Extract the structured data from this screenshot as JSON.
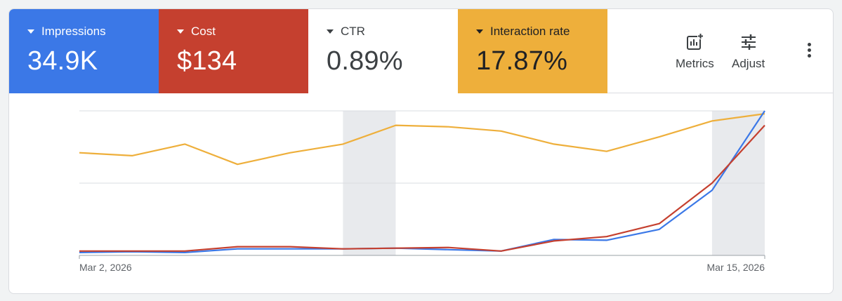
{
  "metrics": [
    {
      "label": "Impressions",
      "value": "34.9K",
      "bg": "#3b78e7"
    },
    {
      "label": "Cost",
      "value": "$134",
      "bg": "#c5402f"
    },
    {
      "label": "CTR",
      "value": "0.89%",
      "bg": "#ffffff"
    },
    {
      "label": "Interaction rate",
      "value": "17.87%",
      "bg": "#eeaf3b"
    }
  ],
  "tools": {
    "metrics_label": "Metrics",
    "adjust_label": "Adjust"
  },
  "chart_data": {
    "type": "line",
    "x_tick_labels": [
      "Mar 2, 2026",
      "Mar 15, 2026"
    ],
    "x": [
      "Mar 2",
      "Mar 3",
      "Mar 4",
      "Mar 5",
      "Mar 6",
      "Mar 7",
      "Mar 8",
      "Mar 9",
      "Mar 10",
      "Mar 11",
      "Mar 12",
      "Mar 13",
      "Mar 14",
      "Mar 15"
    ],
    "ylim": [
      0,
      100
    ],
    "grid": true,
    "highlighted_ranges": [
      [
        "Mar 7",
        "Mar 8"
      ],
      [
        "Mar 14",
        "Mar 15"
      ]
    ],
    "series": [
      {
        "name": "Impressions",
        "color": "#3b78e7",
        "values": [
          2,
          2.5,
          2,
          4.5,
          4.5,
          4.5,
          5,
          4,
          3,
          11,
          10.5,
          18,
          45,
          100
        ]
      },
      {
        "name": "Cost",
        "color": "#c5402f",
        "values": [
          3,
          3,
          3,
          6,
          6,
          4.5,
          5,
          5.5,
          3,
          10,
          13,
          22,
          50,
          90
        ]
      },
      {
        "name": "Interaction rate",
        "color": "#eeaf3b",
        "values": [
          71,
          69,
          77,
          63,
          71,
          77,
          90,
          89,
          86,
          77,
          72,
          82,
          93,
          98
        ]
      }
    ]
  }
}
